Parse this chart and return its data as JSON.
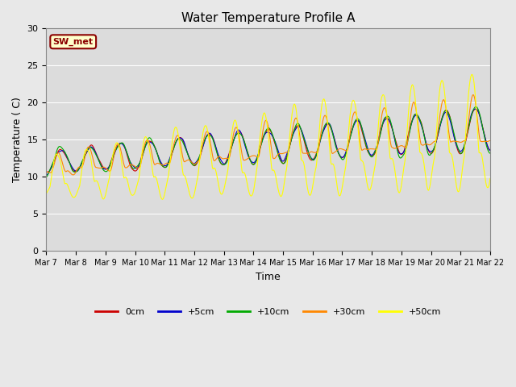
{
  "title": "Water Temperature Profile A",
  "xlabel": "Time",
  "ylabel": "Temperature ( C)",
  "ylim": [
    0,
    30
  ],
  "annotation_text": "SW_met",
  "annotation_color": "#8B0000",
  "annotation_bg": "#FFFFCC",
  "bg_color": "#E8E8E8",
  "plot_bg": "#DCDCDC",
  "series": [
    {
      "label": "0cm",
      "color": "#CC0000"
    },
    {
      "label": "+5cm",
      "color": "#0000CC"
    },
    {
      "label": "+10cm",
      "color": "#00AA00"
    },
    {
      "label": "+30cm",
      "color": "#FF8800"
    },
    {
      "label": "+50cm",
      "color": "#FFFF00"
    }
  ],
  "xtick_labels": [
    "Mar 7",
    "Mar 8",
    "Mar 9",
    "Mar 10",
    "Mar 11",
    "Mar 12",
    "Mar 13",
    "Mar 14",
    "Mar 15",
    "Mar 16",
    "Mar 17",
    "Mar 18",
    "Mar 19",
    "Mar 20",
    "Mar 21",
    "Mar 22"
  ],
  "ytick_vals": [
    0,
    5,
    10,
    15,
    20,
    25,
    30
  ],
  "figsize": [
    6.4,
    4.8
  ],
  "dpi": 100
}
